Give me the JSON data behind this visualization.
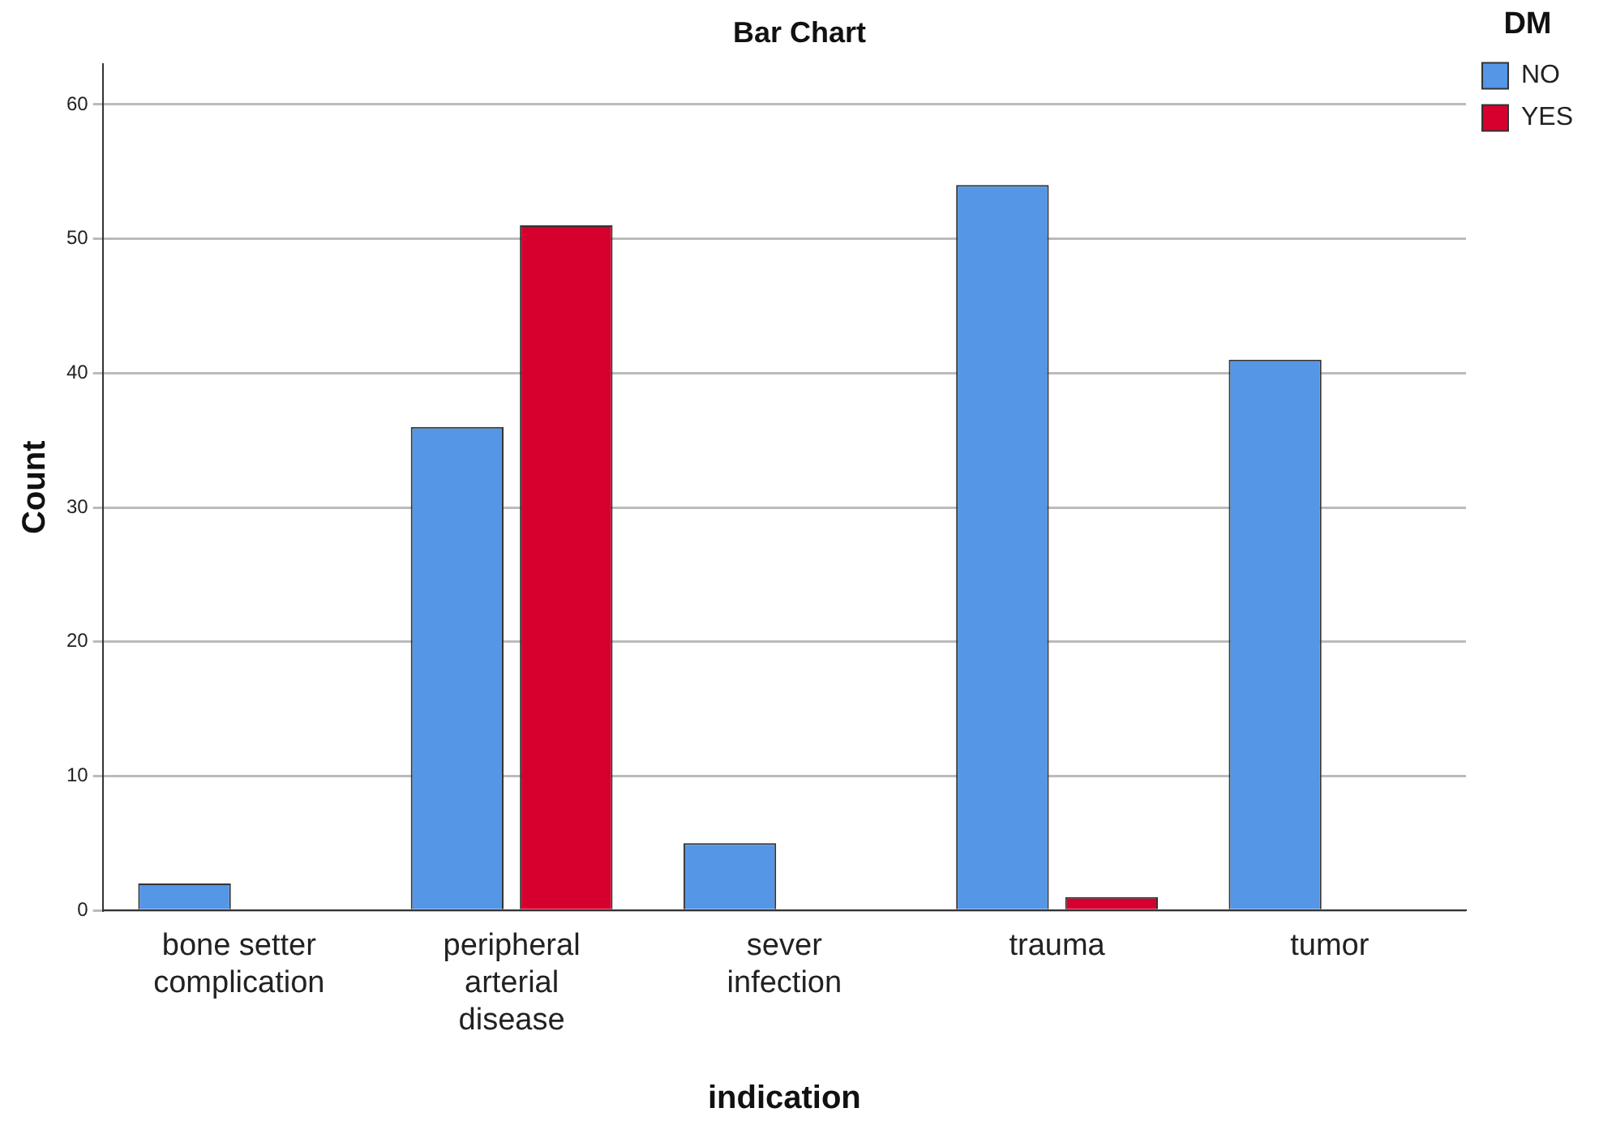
{
  "chart_data": {
    "type": "bar",
    "title": "Bar Chart",
    "xlabel": "indication",
    "ylabel": "Count",
    "legend_title": "DM",
    "categories": [
      "bone setter complication",
      "peripheral arterial disease",
      "sever infection",
      "trauma",
      "tumor"
    ],
    "series": [
      {
        "name": "NO",
        "color": "#5596e6",
        "values": [
          2,
          36,
          5,
          54,
          41
        ]
      },
      {
        "name": "YES",
        "color": "#d5002e",
        "values": [
          0,
          51,
          0,
          1,
          0
        ]
      }
    ],
    "ylim": [
      0,
      63
    ],
    "yticks": [
      0,
      10,
      20,
      30,
      40,
      50,
      60
    ],
    "grid": "y",
    "legend": "right"
  }
}
